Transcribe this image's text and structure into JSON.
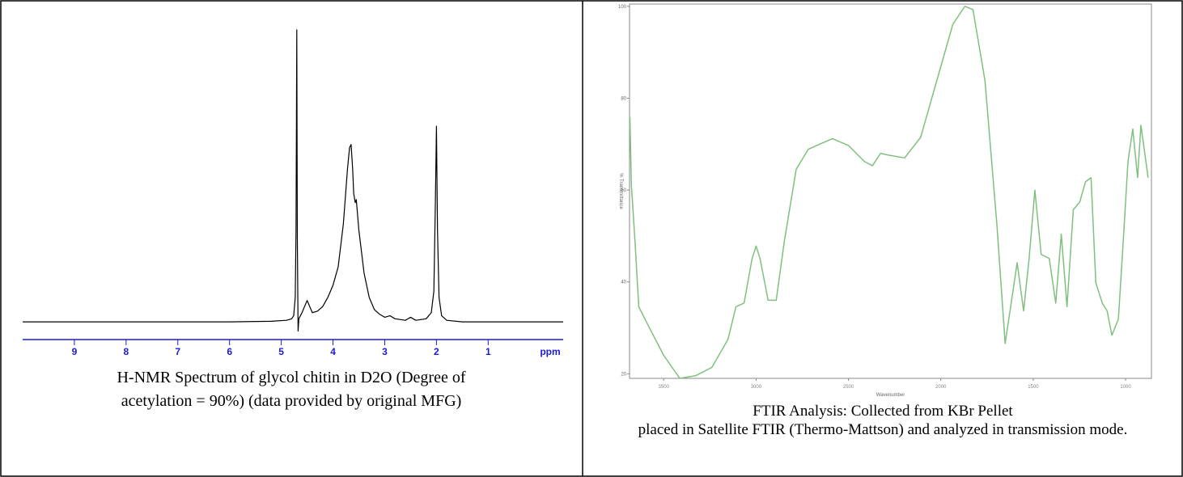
{
  "chart_data": [
    {
      "type": "line",
      "xlabel": "ppm",
      "x": [
        10,
        6,
        5.2,
        4.9,
        4.8,
        4.76,
        4.73,
        4.715,
        4.7,
        4.69,
        4.675,
        4.66,
        4.6,
        4.55,
        4.5,
        4.45,
        4.4,
        4.3,
        4.2,
        4.1,
        4.0,
        3.9,
        3.8,
        3.72,
        3.68,
        3.65,
        3.62,
        3.6,
        3.57,
        3.55,
        3.5,
        3.4,
        3.3,
        3.2,
        3.1,
        3.0,
        2.9,
        2.8,
        2.6,
        2.5,
        2.4,
        2.2,
        2.1,
        2.05,
        2.02,
        2.0,
        1.98,
        1.95,
        1.9,
        1.8,
        1.5,
        1,
        -0.45
      ],
      "values": [
        0,
        0,
        0.2,
        0.5,
        1,
        2,
        8,
        30,
        95.5,
        28,
        -3,
        1,
        3,
        5,
        7,
        5,
        3,
        3.5,
        5,
        8,
        12,
        18,
        32,
        50,
        57,
        58,
        50,
        42,
        39,
        40,
        30,
        16,
        8,
        4,
        2.5,
        1.5,
        2,
        1,
        0.5,
        1.5,
        0.5,
        1,
        3,
        10,
        40,
        64,
        30,
        8,
        2,
        0.5,
        0,
        0,
        0
      ],
      "color": "#000000",
      "axis_color": "#1a1ad6",
      "xlim": [
        10,
        -0.45
      ],
      "xticks": [
        9,
        8,
        7,
        6,
        5,
        4,
        3,
        2,
        1
      ],
      "ylim": [
        -5,
        100
      ],
      "caption": "H-NMR Spectrum of glycol chitin in D2O (Degree of acetylation = 90%) (data provided by original MFG)"
    },
    {
      "type": "line",
      "xlabel": "Wavenumber",
      "ylabel": "% Transmittance",
      "x": [
        3683,
        3675,
        3655,
        3635,
        3590,
        3500,
        3413,
        3326,
        3239,
        3152,
        3109,
        3065,
        3022,
        3000,
        2978,
        2935,
        2891,
        2848,
        2783,
        2717,
        2587,
        2500,
        2413,
        2370,
        2326,
        2283,
        2196,
        2109,
        2022,
        1935,
        1870,
        1826,
        1761,
        1696,
        1652,
        1622,
        1587,
        1552,
        1522,
        1491,
        1457,
        1413,
        1378,
        1348,
        1317,
        1283,
        1248,
        1217,
        1187,
        1161,
        1126,
        1100,
        1074,
        1039,
        1013,
        987,
        961,
        935,
        917,
        878
      ],
      "values": [
        75.9,
        61,
        48.6,
        34.6,
        31,
        24,
        19,
        19.6,
        21.4,
        27.5,
        34.6,
        35.4,
        45,
        47.8,
        45,
        36,
        36,
        48.6,
        64.5,
        68.9,
        71.2,
        69.7,
        66.2,
        65.3,
        68,
        67.6,
        67,
        71.5,
        83.8,
        96.1,
        100,
        99.3,
        83.8,
        52.2,
        26.6,
        34.6,
        44.2,
        33.7,
        45.1,
        60,
        46,
        45.1,
        35.4,
        50.4,
        34.6,
        55.7,
        57.4,
        61.8,
        62.7,
        39.8,
        35.4,
        33.7,
        28.4,
        31.9,
        48.6,
        66.2,
        73.3,
        62.7,
        74.1,
        62.7
      ],
      "color": "#7fc07f",
      "axis_color": "#888888",
      "xlim": [
        3685,
        860
      ],
      "xticks": [
        3500,
        3000,
        2500,
        2000,
        1500,
        1000
      ],
      "ylim": [
        19,
        100.5
      ],
      "yticks": [
        20,
        40,
        60,
        80,
        100
      ],
      "caption": [
        "FTIR Analysis: Collected from KBr Pellet",
        "placed in Satellite FTIR (Thermo-Mattson) and analyzed in transmission mode."
      ]
    }
  ]
}
